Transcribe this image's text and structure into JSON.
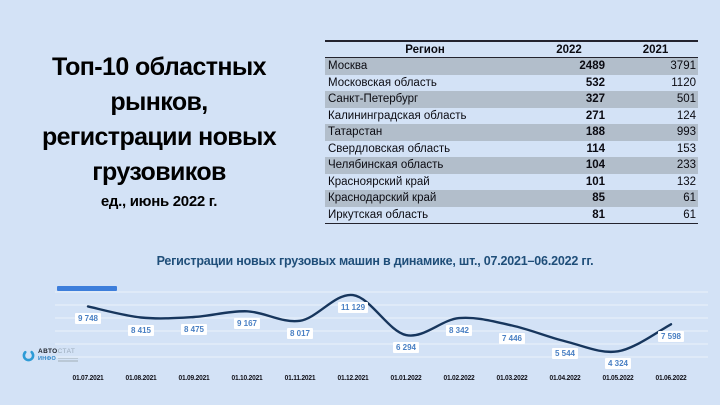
{
  "slide": {
    "background": "#d3e2f6"
  },
  "title": {
    "lines": [
      "Топ-10 областных",
      "рынков,",
      "регистрации новых",
      "грузовиков"
    ],
    "subtitle": "ед., июнь 2022 г."
  },
  "chart_data": [
    {
      "type": "table",
      "columns": [
        "Регион",
        "2022",
        "2021"
      ],
      "rows": [
        [
          "Москва",
          2489,
          3791
        ],
        [
          "Московская область",
          532,
          1120
        ],
        [
          "Санкт-Петербург",
          327,
          501
        ],
        [
          "Калининградская область",
          271,
          124
        ],
        [
          "Татарстан",
          188,
          993
        ],
        [
          "Свердловская область",
          114,
          153
        ],
        [
          "Челябинская область",
          104,
          233
        ],
        [
          "Красноярский край",
          101,
          132
        ],
        [
          "Краснодарский край",
          85,
          61
        ],
        [
          "Иркутская область",
          81,
          61
        ]
      ],
      "stripe_color": "#b2becb"
    },
    {
      "type": "line",
      "title": "Регистрации новых грузовых машин в динамике, шт., 07.2021–06.2022 гг.",
      "x": [
        "01.07.2021",
        "01.08.2021",
        "01.09.2021",
        "01.10.2021",
        "01.11.2021",
        "01.12.2021",
        "01.01.2022",
        "01.02.2022",
        "01.03.2022",
        "01.04.2022",
        "01.05.2022",
        "01.06.2022"
      ],
      "values": [
        9748,
        8415,
        8475,
        9167,
        8017,
        11129,
        6294,
        8342,
        7446,
        5544,
        4324,
        7598
      ],
      "point_labels": [
        "9 748",
        "8 415",
        "8 475",
        "9 167",
        "8 017",
        "11 129",
        "6 294",
        "8 342",
        "7 446",
        "5 544",
        "4 324",
        "7 598"
      ],
      "ylim": [
        4000,
        11500
      ],
      "grid": true,
      "legend_position": "top-left",
      "line_color": "#17365d",
      "point_label_color": "#4a80c4",
      "legend_marker_color": "#3d7edb",
      "grid_color": "rgba(255,255,255,0.55)"
    }
  ],
  "logo": {
    "brand_bold": "АВТО",
    "brand_light": "СТАТ",
    "sub_brand": "ИНФО"
  }
}
